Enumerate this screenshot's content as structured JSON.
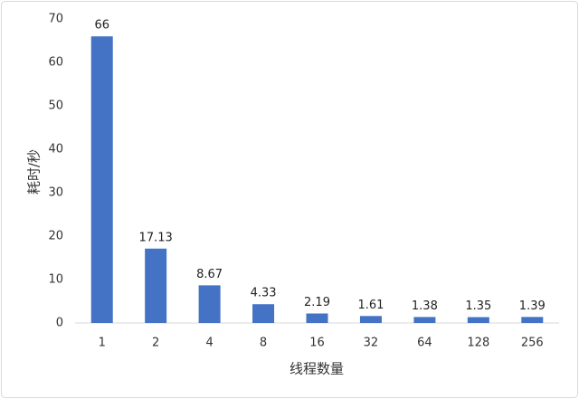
{
  "chart_data": {
    "type": "bar",
    "categories": [
      "1",
      "2",
      "4",
      "8",
      "16",
      "32",
      "64",
      "128",
      "256"
    ],
    "values": [
      66,
      17.13,
      8.67,
      4.33,
      2.19,
      1.61,
      1.38,
      1.35,
      1.39
    ],
    "color": "#4472c4",
    "x_label": "线程数量",
    "y_label": "耗时/秒",
    "ylim": [
      0,
      70
    ],
    "yticks": [
      0,
      10,
      20,
      30,
      40,
      50,
      60,
      70
    ],
    "grid": false,
    "data_labels": true
  }
}
